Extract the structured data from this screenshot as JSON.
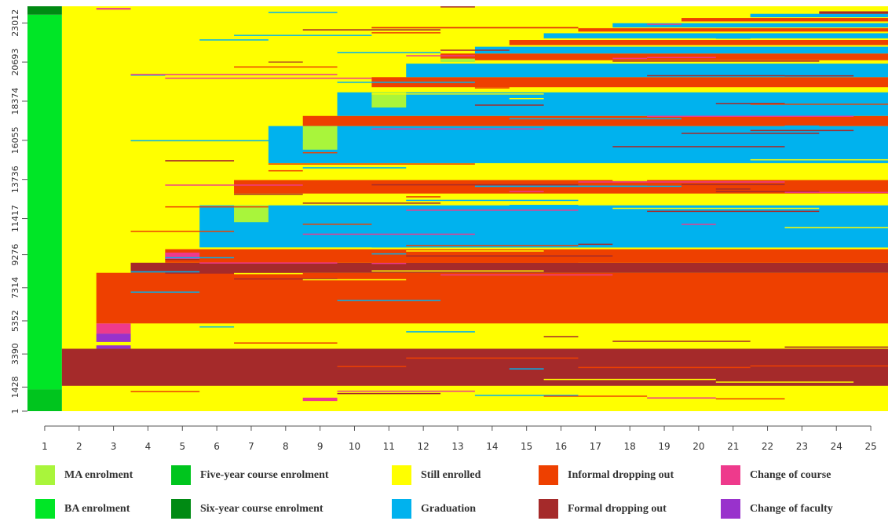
{
  "chart_data": {
    "type": "heatmap",
    "title": "",
    "xlabel": "",
    "ylabel": "",
    "x_ticks": [
      1,
      2,
      3,
      4,
      5,
      6,
      7,
      8,
      9,
      10,
      11,
      12,
      13,
      14,
      15,
      16,
      17,
      18,
      19,
      20,
      21,
      22,
      23,
      24,
      25
    ],
    "y_ticks": [
      "1",
      "1428",
      "3390",
      "5352",
      "7314",
      "9276",
      "11417",
      "13736",
      "16055",
      "18374",
      "20693",
      "23012"
    ],
    "y_range": [
      1,
      24000
    ],
    "x_range": [
      1,
      25
    ],
    "states": {
      "ma": {
        "label": "MA enrolment",
        "color": "#A9F53B"
      },
      "ba": {
        "label": "BA enrolment",
        "color": "#00E626"
      },
      "five": {
        "label": "Five-year course enrolment",
        "color": "#00C51E"
      },
      "six": {
        "label": "Six-year course enrolment",
        "color": "#008A13"
      },
      "still": {
        "label": "Still enrolled",
        "color": "#FFFF00"
      },
      "grad": {
        "label": "Graduation",
        "color": "#00B2EE"
      },
      "informal": {
        "label": "Informal dropping out",
        "color": "#EE4000"
      },
      "formal": {
        "label": "Formal dropping out",
        "color": "#A52A2A"
      },
      "course": {
        "label": "Change of course",
        "color": "#EE3A8C"
      },
      "faculty": {
        "label": "Change of faculty",
        "color": "#9932CC"
      }
    },
    "legend_order": [
      [
        "ma",
        "ba"
      ],
      [
        "five",
        "six"
      ],
      [
        "still",
        "grad"
      ],
      [
        "informal",
        "formal"
      ],
      [
        "course",
        "faculty"
      ]
    ],
    "col1_segments": [
      {
        "y0": 1,
        "y1": 1300,
        "state": "five"
      },
      {
        "y0": 1300,
        "y1": 23500,
        "state": "ba"
      },
      {
        "y0": 23500,
        "y1": 24000,
        "state": "six"
      }
    ],
    "background_state": "still",
    "blocks": [
      {
        "y0": 1500,
        "y1": 3700,
        "from": 2,
        "state": "formal"
      },
      {
        "y0": 5200,
        "y1": 8200,
        "from": 3,
        "state": "informal"
      },
      {
        "y0": 8200,
        "y1": 8800,
        "from": 4,
        "state": "formal"
      },
      {
        "y0": 8800,
        "y1": 9600,
        "from": 5,
        "state": "informal"
      },
      {
        "y0": 9700,
        "y1": 12200,
        "from": 6,
        "state": "grad"
      },
      {
        "y0": 12900,
        "y1": 13700,
        "from": 7,
        "state": "informal"
      },
      {
        "y0": 14700,
        "y1": 16900,
        "from": 8,
        "state": "grad"
      },
      {
        "y0": 16900,
        "y1": 17500,
        "from": 9,
        "state": "informal"
      },
      {
        "y0": 17500,
        "y1": 18900,
        "from": 10,
        "state": "grad"
      },
      {
        "y0": 19200,
        "y1": 19800,
        "from": 11,
        "state": "informal"
      },
      {
        "y0": 19800,
        "y1": 20600,
        "from": 12,
        "state": "grad"
      },
      {
        "y0": 20800,
        "y1": 21200,
        "from": 13,
        "state": "informal"
      },
      {
        "y0": 21200,
        "y1": 21600,
        "from": 14,
        "state": "grad"
      },
      {
        "y0": 21700,
        "y1": 22000,
        "from": 15,
        "state": "informal"
      },
      {
        "y0": 22100,
        "y1": 22400,
        "from": 16,
        "state": "grad"
      },
      {
        "y0": 22500,
        "y1": 22700,
        "from": 17,
        "state": "informal"
      },
      {
        "y0": 22750,
        "y1": 23000,
        "from": 18,
        "state": "grad"
      },
      {
        "y0": 23100,
        "y1": 23300,
        "from": 20,
        "state": "informal"
      },
      {
        "y0": 23350,
        "y1": 23550,
        "from": 22,
        "state": "grad"
      },
      {
        "y0": 23550,
        "y1": 23700,
        "from": 24,
        "state": "formal"
      },
      {
        "y0": 11200,
        "y1": 12200,
        "from": 7,
        "to": 7,
        "state": "ma"
      },
      {
        "y0": 15500,
        "y1": 16900,
        "from": 9,
        "to": 9,
        "state": "ma"
      },
      {
        "y0": 18000,
        "y1": 18900,
        "from": 11,
        "to": 11,
        "state": "ma"
      },
      {
        "y0": 20700,
        "y1": 20900,
        "from": 13,
        "to": 13,
        "state": "ma"
      },
      {
        "y0": 4100,
        "y1": 4600,
        "from": 3,
        "to": 3,
        "state": "faculty"
      },
      {
        "y0": 4600,
        "y1": 5200,
        "from": 3,
        "to": 3,
        "state": "course"
      },
      {
        "y0": 9000,
        "y1": 9400,
        "from": 5,
        "to": 5,
        "state": "course"
      },
      {
        "y0": 3700,
        "y1": 3900,
        "from": 3,
        "to": 3,
        "state": "faculty"
      },
      {
        "y0": 600,
        "y1": 800,
        "from": 9,
        "to": 9,
        "state": "course"
      },
      {
        "y0": 23800,
        "y1": 23900,
        "from": 3,
        "to": 3,
        "state": "course"
      }
    ]
  }
}
